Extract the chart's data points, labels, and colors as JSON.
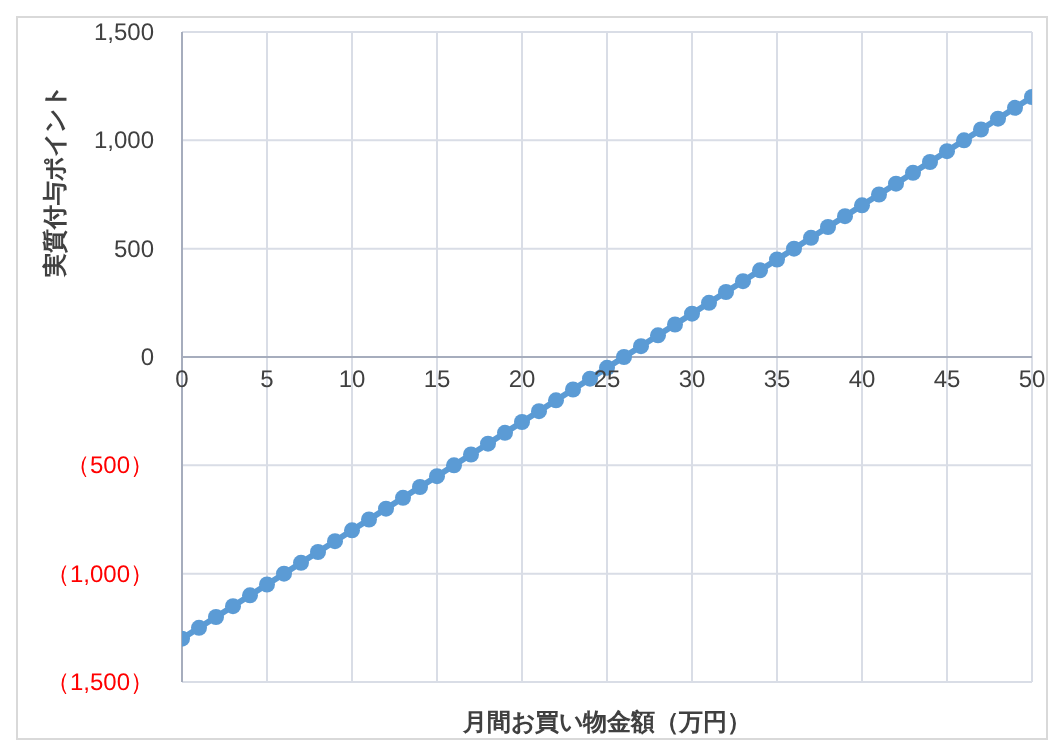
{
  "chart_data": {
    "type": "line",
    "xlabel": "月間お買い物金額（万円）",
    "ylabel": "実質付与ポイント",
    "x": [
      0,
      1,
      2,
      3,
      4,
      5,
      6,
      7,
      8,
      9,
      10,
      11,
      12,
      13,
      14,
      15,
      16,
      17,
      18,
      19,
      20,
      21,
      22,
      23,
      24,
      25,
      26,
      27,
      28,
      29,
      30,
      31,
      32,
      33,
      34,
      35,
      36,
      37,
      38,
      39,
      40,
      41,
      42,
      43,
      44,
      45,
      46,
      47,
      48,
      49,
      50
    ],
    "series": [
      {
        "color": "#5b9bd5",
        "values": [
          -1300,
          -1250,
          -1200,
          -1150,
          -1100,
          -1050,
          -1000,
          -950,
          -900,
          -850,
          -800,
          -750,
          -700,
          -650,
          -600,
          -550,
          -500,
          -450,
          -400,
          -350,
          -300,
          -250,
          -200,
          -150,
          -100,
          -50,
          0,
          50,
          100,
          150,
          200,
          250,
          300,
          350,
          400,
          450,
          500,
          550,
          600,
          650,
          700,
          750,
          800,
          850,
          900,
          950,
          1000,
          1050,
          1100,
          1150,
          1200
        ]
      }
    ],
    "xlim": [
      0,
      50
    ],
    "xticks": [
      0,
      5,
      10,
      15,
      20,
      25,
      30,
      35,
      40,
      45,
      50
    ],
    "ylim": [
      -1500,
      1500
    ],
    "yticks": [
      {
        "value": -1500,
        "label": "（1,500）"
      },
      {
        "value": -1000,
        "label": "（1,000）"
      },
      {
        "value": -500,
        "label": "（500）"
      },
      0,
      {
        "value": 500,
        "label": "500"
      },
      {
        "value": 1000,
        "label": "1,000"
      },
      {
        "value": 1500,
        "label": "1,500"
      }
    ],
    "grid": true,
    "marker": "circle",
    "line_style": "solid"
  }
}
